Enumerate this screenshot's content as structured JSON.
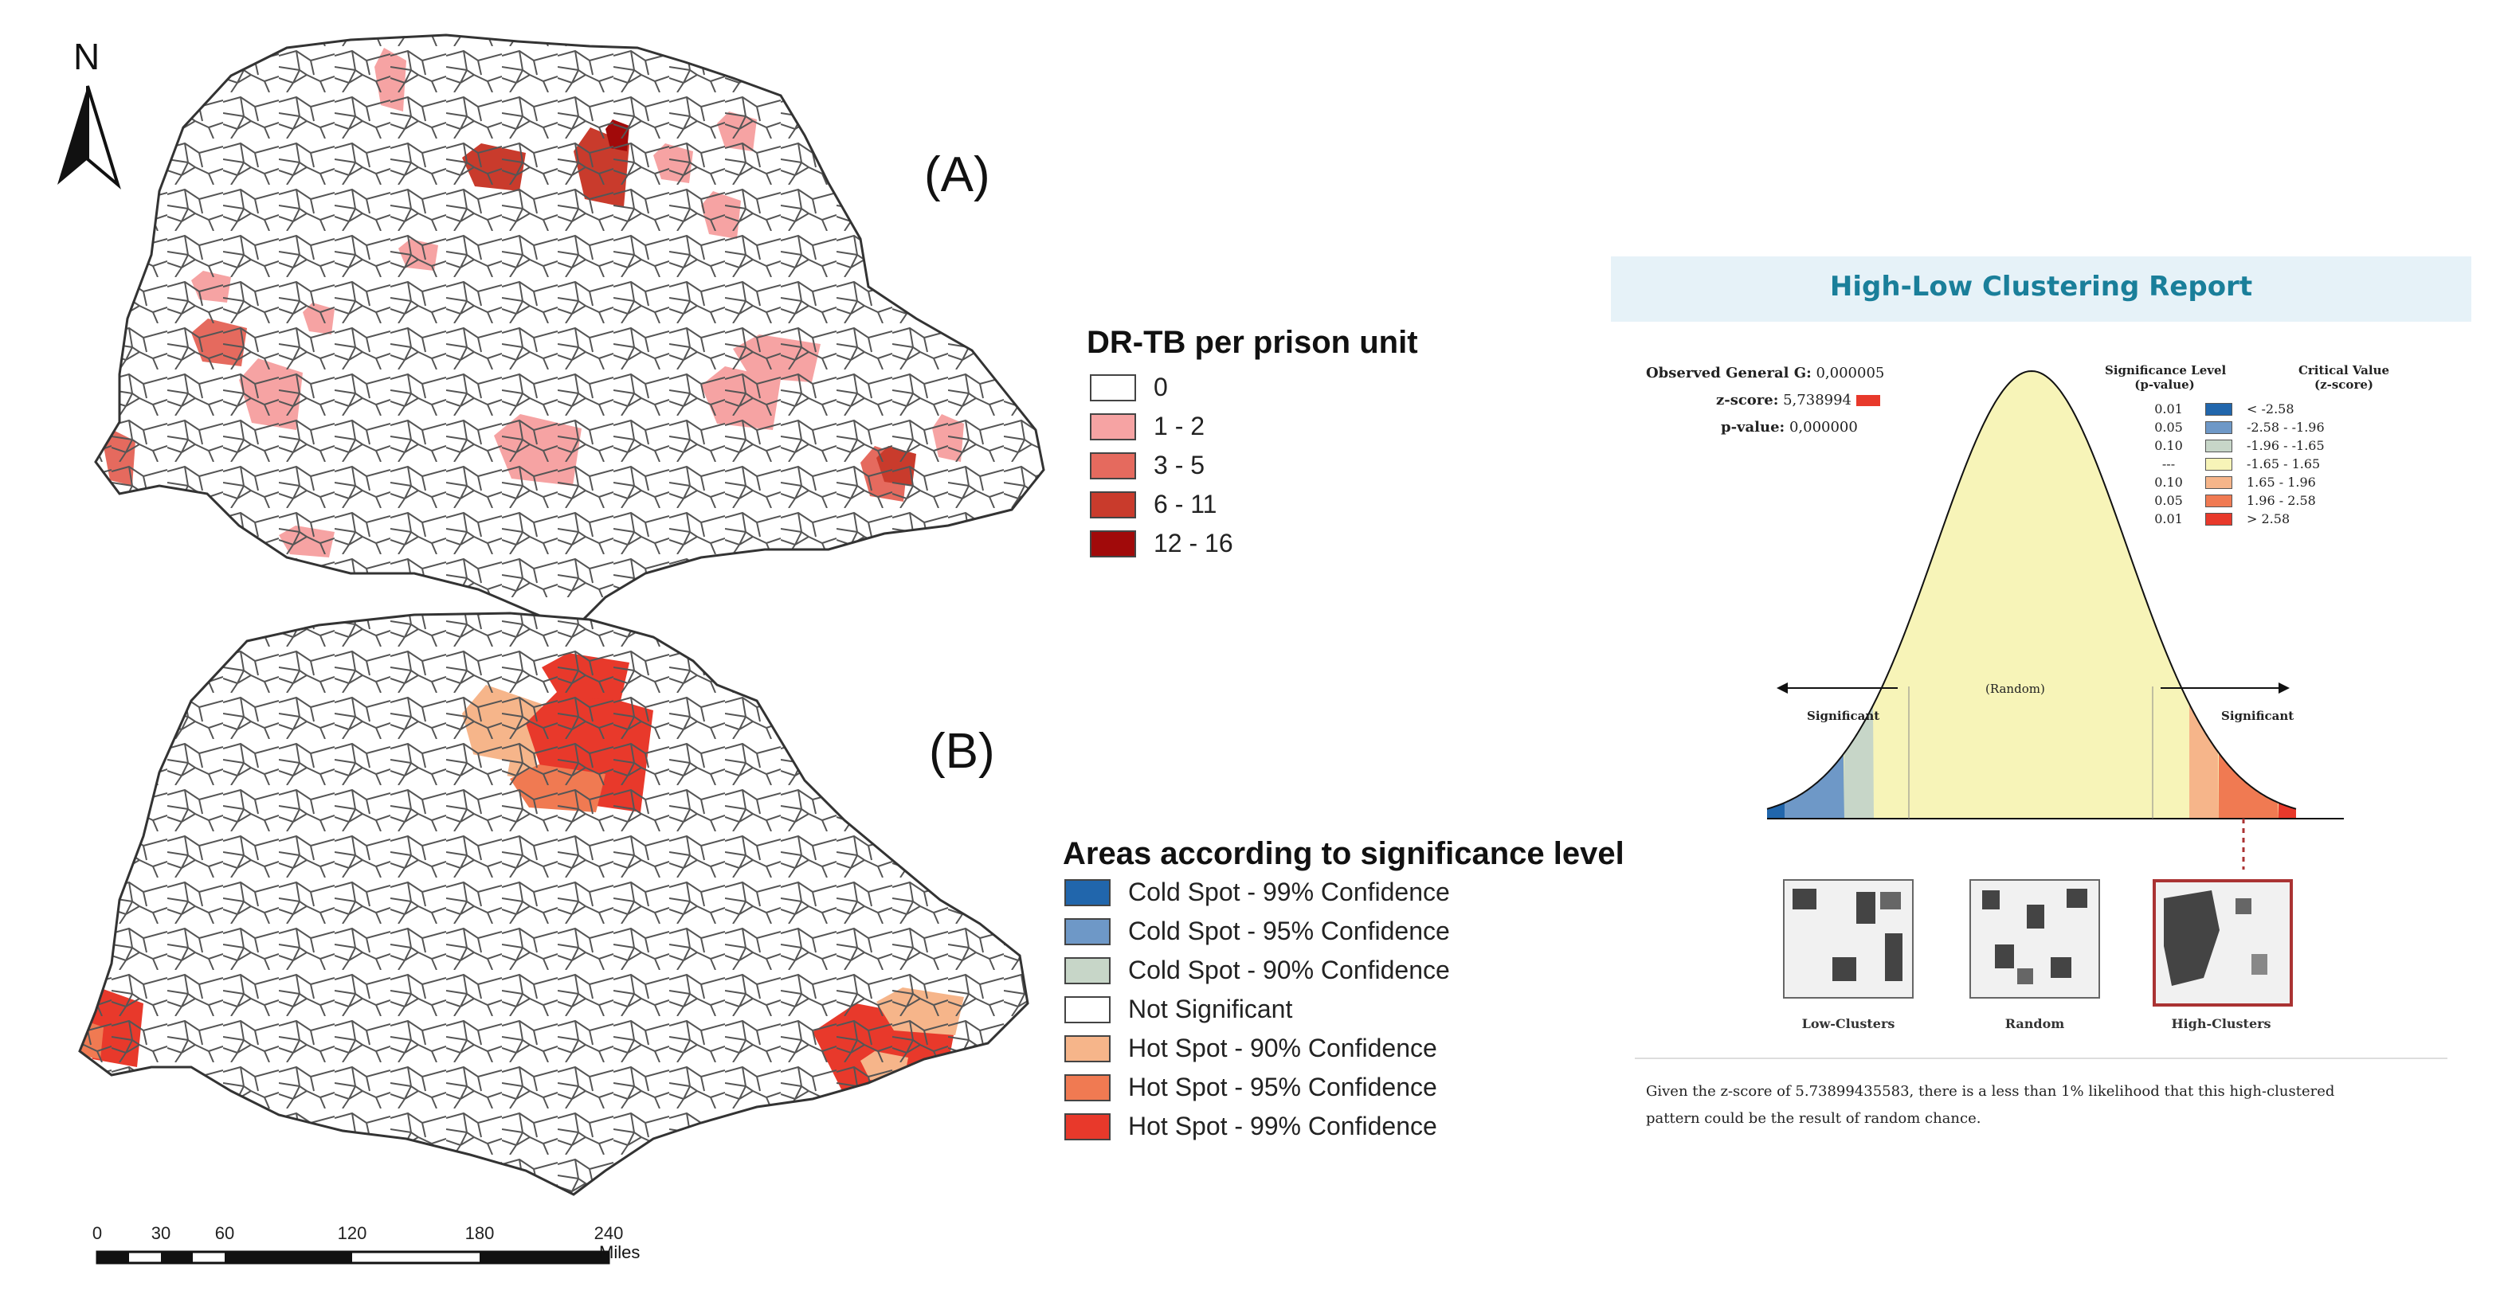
{
  "north_arrow": {
    "letter": "N"
  },
  "panel_a": {
    "label": "(A)",
    "legend_title": "DR-TB per prison unit",
    "legend": [
      {
        "label": "0",
        "color": "#ffffff"
      },
      {
        "label": "1 - 2",
        "color": "#f6a3a3"
      },
      {
        "label": "3 - 5",
        "color": "#e56a5e"
      },
      {
        "label": "6 - 11",
        "color": "#c93b2c"
      },
      {
        "label": "12 - 16",
        "color": "#a10a0a"
      }
    ]
  },
  "panel_b": {
    "label": "(B)",
    "legend_title": "Areas according to significance level",
    "legend": [
      {
        "label": "Cold Spot - 99% Confidence",
        "color": "#2166ac"
      },
      {
        "label": "Cold Spot - 95% Confidence",
        "color": "#6e98c7"
      },
      {
        "label": "Cold Spot - 90% Confidence",
        "color": "#c7d6c8"
      },
      {
        "label": "Not Significant",
        "color": "#ffffff"
      },
      {
        "label": "Hot Spot - 90% Confidence",
        "color": "#f6b58a"
      },
      {
        "label": "Hot Spot - 95% Confidence",
        "color": "#f07a52"
      },
      {
        "label": "Hot Spot - 99% Confidence",
        "color": "#e8392b"
      }
    ]
  },
  "scale_bar": {
    "ticks": [
      "0",
      "30",
      "60",
      "120",
      "180",
      "240"
    ],
    "unit": "Miles"
  },
  "report": {
    "title": "High-Low Clustering Report",
    "observed_label": "Observed General G:",
    "observed_value": "0,000005",
    "zscore_label": "z-score:",
    "zscore_value": "5,738994",
    "pvalue_label": "p-value:",
    "pvalue_value": "0,000000",
    "sig_header": [
      "Significance Level",
      "(p-value)"
    ],
    "crit_header": [
      "Critical Value",
      "(z-score)"
    ],
    "rows": [
      {
        "level": "0.01",
        "value": "< -2.58",
        "color": "#2166ac"
      },
      {
        "level": "0.05",
        "value": "-2.58 - -1.96",
        "color": "#6e98c7"
      },
      {
        "level": "0.10",
        "value": "-1.96 - -1.65",
        "color": "#c7d6c8"
      },
      {
        "level": "---",
        "value": "-1.65 - 1.65",
        "color": "#f7f4b8"
      },
      {
        "level": "0.10",
        "value": "1.65 - 1.96",
        "color": "#f6b58a"
      },
      {
        "level": "0.05",
        "value": "1.96 - 2.58",
        "color": "#f07a52"
      },
      {
        "level": "0.01",
        "value": "> 2.58",
        "color": "#e8392b"
      }
    ],
    "curve_center_label": "(Random)",
    "left_sig_label": "Significant",
    "right_sig_label": "Significant",
    "thumbs": [
      "Low-Clusters",
      "Random",
      "High-Clusters"
    ],
    "conclusion_line1": "Given the z-score of 5.73899435583, there is a less than 1% likelihood that this high-clustered",
    "conclusion_line2": "pattern could be the result of random chance."
  }
}
